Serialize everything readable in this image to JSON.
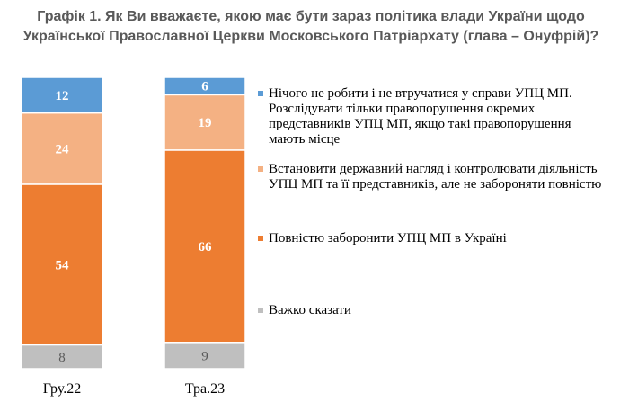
{
  "chart_data": {
    "type": "bar",
    "stacked": true,
    "title": "Графік 1. Як Ви вважаєте, якою має бути зараз політика влади України щодо Української Православної Церкви Московського Патріархату (глава – Онуфрій)?",
    "categories": [
      "Гру.22",
      "Тра.23"
    ],
    "series": [
      {
        "name": "Нічого не робити і не втручатися у справи УПЦ МП. Розслідувати тільки правопорушення окремих представників УПЦ МП, якщо такі правопорушення мають місце",
        "values": [
          12,
          6
        ],
        "color": "#5b9bd5",
        "label_color": "#ffffff"
      },
      {
        "name": "Встановити державний нагляд і контролювати діяльність УПЦ МП та її представників, але не забороняти повністю",
        "values": [
          24,
          19
        ],
        "color": "#f4b183",
        "label_color": "#ffffff"
      },
      {
        "name": "Повністю заборонити УПЦ МП в Україні",
        "values": [
          54,
          66
        ],
        "color": "#ed7d31",
        "label_color": "#ffffff"
      },
      {
        "name": "Важко сказати",
        "values": [
          8,
          9
        ],
        "color": "#bfbfbf",
        "label_color": "#595959"
      }
    ],
    "legend_position": "right",
    "grid": false
  }
}
